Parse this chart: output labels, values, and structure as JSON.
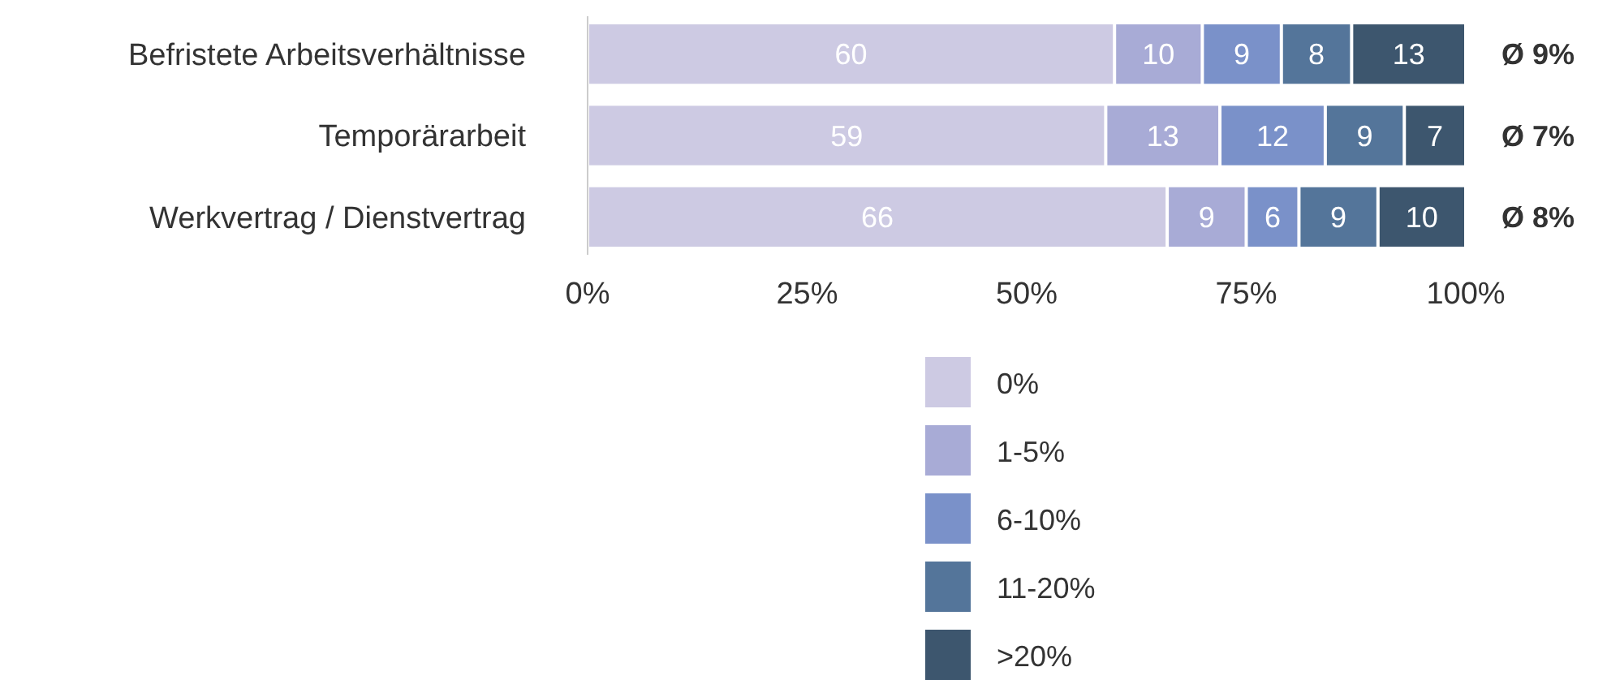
{
  "chart_data": {
    "type": "bar",
    "orientation": "horizontal",
    "stacked": true,
    "categories": [
      "Befristete Arbeitsverhältnisse",
      "Temporärarbeit",
      "Werkvertrag / Dienstvertrag"
    ],
    "series": [
      {
        "name": "0%",
        "color": "#cdcae3",
        "values": [
          60,
          59,
          66
        ]
      },
      {
        "name": "1-5%",
        "color": "#a8abd6",
        "values": [
          10,
          13,
          9
        ]
      },
      {
        "name": "6-10%",
        "color": "#7a91c9",
        "values": [
          9,
          12,
          6
        ]
      },
      {
        "name": "11-20%",
        "color": "#54759a",
        "values": [
          8,
          9,
          9
        ]
      },
      {
        "name": ">20%",
        "color": "#3d566e",
        "values": [
          13,
          7,
          10
        ]
      }
    ],
    "xlim": [
      0,
      100
    ],
    "xticks": [
      {
        "value": 0,
        "label": "0%"
      },
      {
        "value": 25,
        "label": "25%"
      },
      {
        "value": 50,
        "label": "50%"
      },
      {
        "value": 75,
        "label": "75%"
      },
      {
        "value": 100,
        "label": "100%"
      }
    ],
    "data_labels": true,
    "totals": [
      "Ø 9%",
      "Ø 7%",
      "Ø 8%"
    ],
    "legend": "bottom",
    "grid": false
  }
}
